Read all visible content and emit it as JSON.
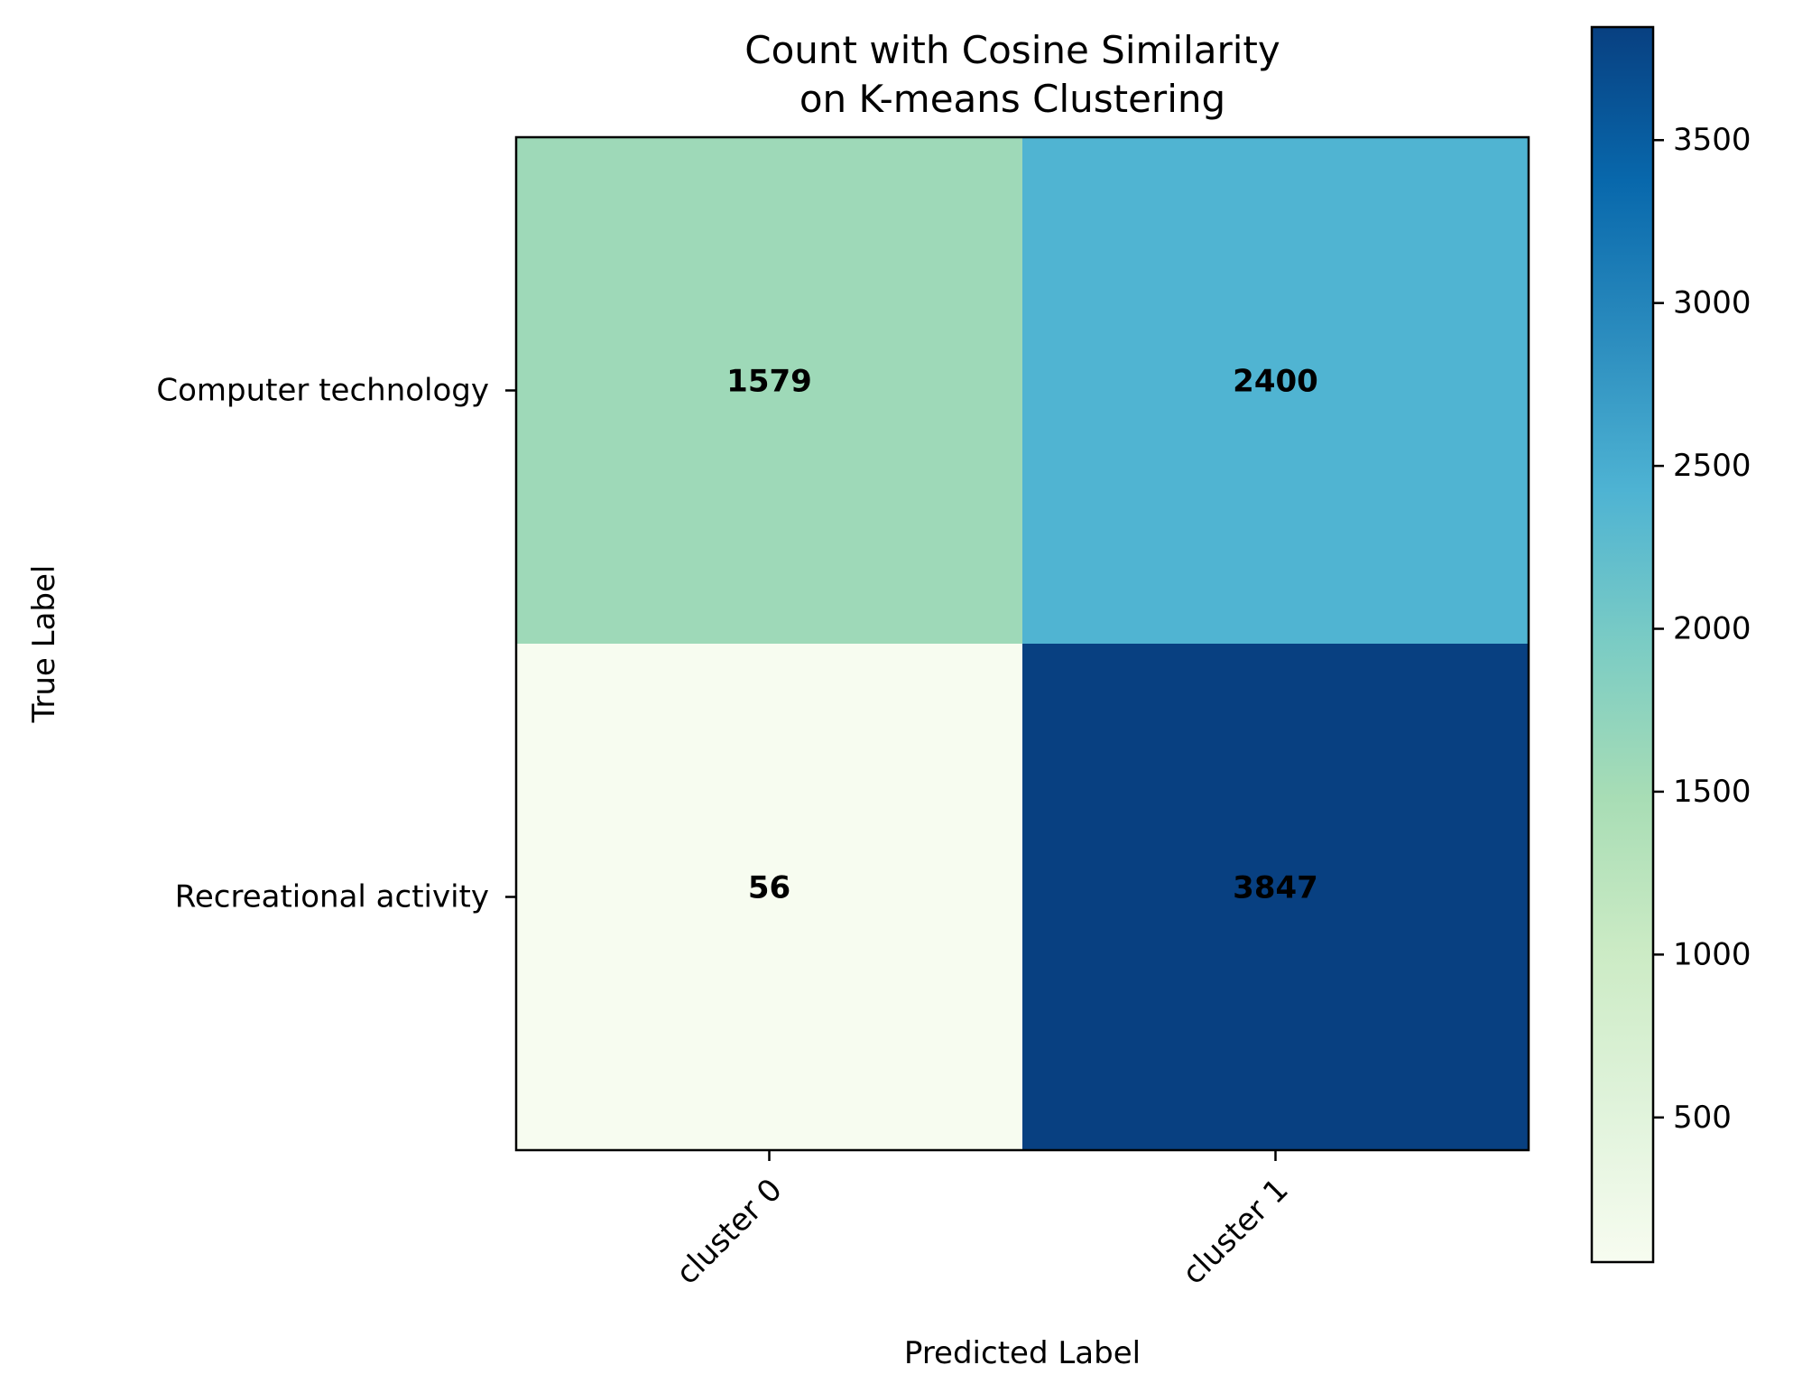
{
  "chart_data": {
    "type": "heatmap",
    "title_lines": [
      "Count with Cosine Similarity",
      "on K-means Clustering"
    ],
    "xlabel": "Predicted Label",
    "ylabel": "True Label",
    "x_categories": [
      "cluster 0",
      "cluster 1"
    ],
    "y_categories": [
      "Computer technology",
      "Recreational activity"
    ],
    "values": [
      [
        1579,
        2400
      ],
      [
        56,
        3847
      ]
    ],
    "colormap": "GnBu",
    "colormap_stops": [
      "#f7fcf0",
      "#e0f3db",
      "#ccebc5",
      "#a8ddb5",
      "#7bccc4",
      "#4eb3d3",
      "#2b8cbe",
      "#0868ac",
      "#084081"
    ],
    "colorbar": {
      "range": [
        56,
        3847
      ],
      "ticks": [
        500,
        1000,
        1500,
        2000,
        2500,
        3000,
        3500
      ]
    },
    "grid": false,
    "legend": "colorbar-right"
  }
}
